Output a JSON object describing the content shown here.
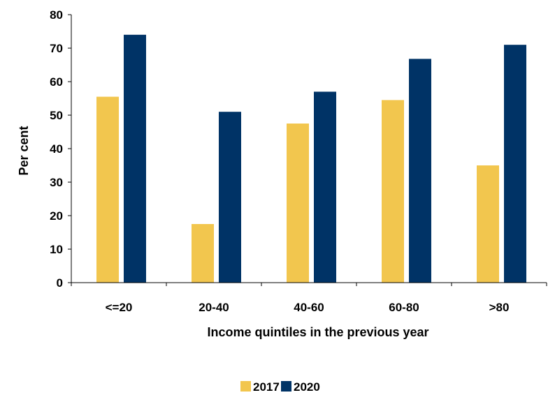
{
  "chart_data": {
    "type": "bar",
    "categories": [
      "<=20",
      "20-40",
      "40-60",
      "60-80",
      ">80"
    ],
    "series": [
      {
        "name": "2017",
        "values": [
          55.5,
          17.5,
          47.5,
          54.5,
          35.0
        ],
        "color": "#F2C64E"
      },
      {
        "name": "2020",
        "values": [
          74.0,
          51.0,
          57.0,
          66.8,
          71.0
        ],
        "color": "#003366"
      }
    ],
    "xlabel": "Income quintiles in the previous year",
    "ylabel": "Per cent",
    "ylim": [
      0,
      80
    ],
    "yticks": [
      0,
      10,
      20,
      30,
      40,
      50,
      60,
      70,
      80
    ],
    "grid": false,
    "legend_position": "bottom-center"
  }
}
